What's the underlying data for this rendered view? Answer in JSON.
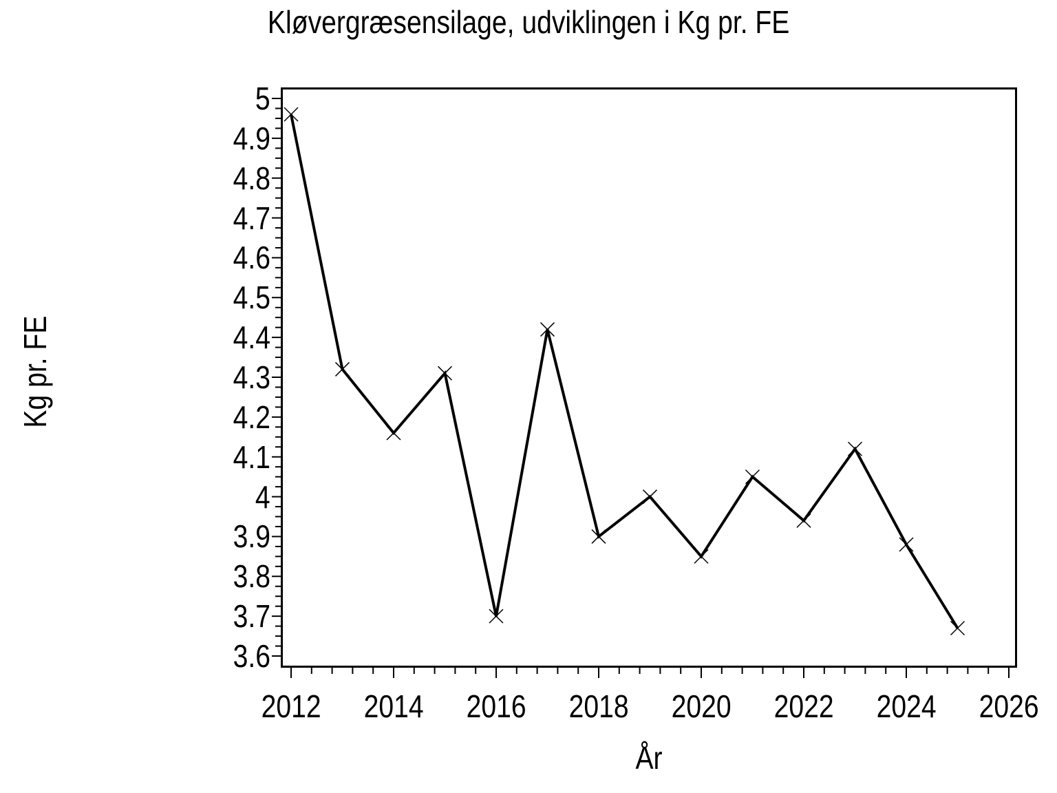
{
  "chart_data": {
    "type": "line",
    "title": "Kløvergræsensilage, udviklingen i Kg pr. FE",
    "xlabel": "År",
    "ylabel": "Kg pr. FE",
    "x": [
      2012,
      2013,
      2014,
      2015,
      2016,
      2017,
      2018,
      2019,
      2020,
      2021,
      2022,
      2023,
      2024,
      2025
    ],
    "values": [
      4.96,
      4.32,
      4.16,
      4.31,
      3.7,
      4.42,
      3.9,
      4.0,
      3.85,
      4.05,
      3.94,
      4.12,
      3.88,
      3.67
    ],
    "x_axis": {
      "min": 2012,
      "max": 2026,
      "major_step": 2,
      "minor_divisions": 5,
      "tick_labels": [
        "2012",
        "2014",
        "2016",
        "2018",
        "2020",
        "2022",
        "2024",
        "2026"
      ]
    },
    "y_axis": {
      "min": 3.6,
      "max": 5,
      "major_step": 0.1,
      "minor_divisions": 4,
      "tick_labels": [
        "5",
        "4.9",
        "4.8",
        "4.7",
        "4.6",
        "4.5",
        "4.4",
        "4.3",
        "4.2",
        "4.1",
        "4",
        "3.9",
        "3.8",
        "3.7",
        "3.6"
      ]
    },
    "marker": "x",
    "line_color": "#000000",
    "text_color": "#000000",
    "background": "#ffffff",
    "grid": false,
    "legend": false
  }
}
